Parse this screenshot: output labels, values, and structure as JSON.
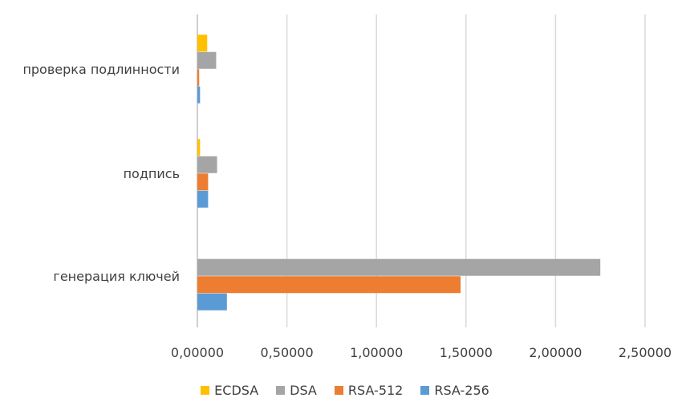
{
  "chart_data": {
    "type": "bar",
    "orientation": "horizontal",
    "categories": [
      "генерация ключей",
      "подпись",
      "проверка подлинности"
    ],
    "series": [
      {
        "name": "RSA-256",
        "color": "#5B9BD5",
        "values": [
          0.165,
          0.06,
          0.015
        ]
      },
      {
        "name": "RSA-512",
        "color": "#ED7D31",
        "values": [
          1.47,
          0.06,
          0.01
        ]
      },
      {
        "name": "DSA",
        "color": "#A5A5A5",
        "values": [
          2.25,
          0.11,
          0.105
        ]
      },
      {
        "name": "ECDSA",
        "color": "#FFC000",
        "values": [
          0.0,
          0.015,
          0.055
        ]
      }
    ],
    "xlim": [
      0,
      2.5
    ],
    "xticks": [
      "0,00000",
      "0,50000",
      "1,00000",
      "1,50000",
      "2,00000",
      "2,50000"
    ],
    "tick_values": [
      0,
      0.5,
      1.0,
      1.5,
      2.0,
      2.5
    ],
    "grid": true,
    "legend_position": "bottom",
    "legend_order": [
      "ECDSA",
      "DSA",
      "RSA-512",
      "RSA-256"
    ],
    "title": "",
    "xlabel": "",
    "ylabel": ""
  }
}
